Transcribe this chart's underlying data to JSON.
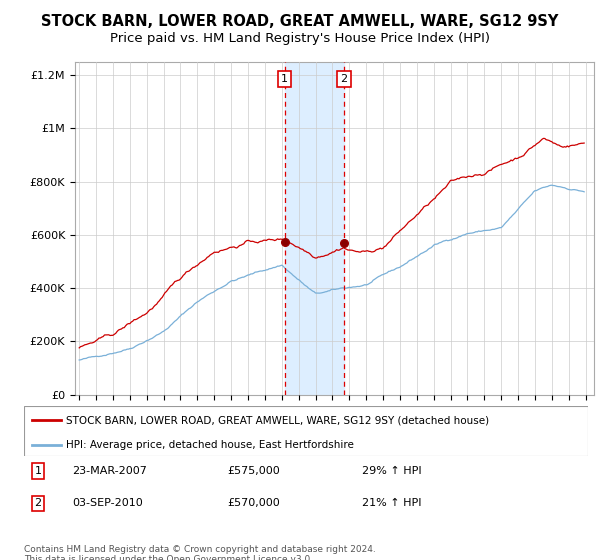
{
  "title": "STOCK BARN, LOWER ROAD, GREAT AMWELL, WARE, SG12 9SY",
  "subtitle": "Price paid vs. HM Land Registry's House Price Index (HPI)",
  "title_fontsize": 10.5,
  "subtitle_fontsize": 9.5,
  "background_color": "#ffffff",
  "grid_color": "#cccccc",
  "ylim": [
    0,
    1250000
  ],
  "yticks": [
    0,
    200000,
    400000,
    600000,
    800000,
    1000000,
    1200000
  ],
  "ytick_labels": [
    "£0",
    "£200K",
    "£400K",
    "£600K",
    "£800K",
    "£1M",
    "£1.2M"
  ],
  "xlim_start": 1994.75,
  "xlim_end": 2025.5,
  "hpi_color": "#7ab0d8",
  "price_color": "#cc0000",
  "marker1_x": 2007.17,
  "marker2_x": 2010.67,
  "marker1_price": 575000,
  "marker2_price": 570000,
  "shade_color": "#ddeeff",
  "vline_color": "#dd0000",
  "legend_label_red": "STOCK BARN, LOWER ROAD, GREAT AMWELL, WARE, SG12 9SY (detached house)",
  "legend_label_blue": "HPI: Average price, detached house, East Hertfordshire",
  "footnote": "Contains HM Land Registry data © Crown copyright and database right 2024.\nThis data is licensed under the Open Government Licence v3.0."
}
